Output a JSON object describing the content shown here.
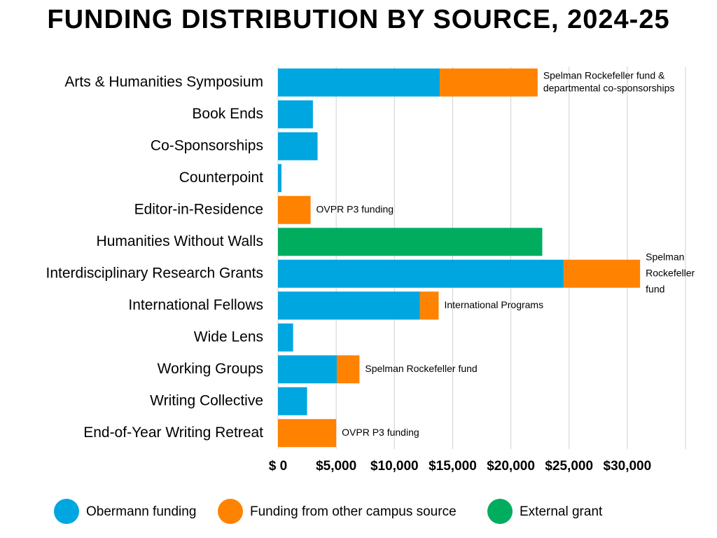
{
  "chart_data": {
    "type": "bar",
    "orientation": "horizontal",
    "stacked": true,
    "title": "FUNDING DISTRIBUTION BY SOURCE, 2024-25",
    "categories": [
      "Arts & Humanities Symposium",
      "Book Ends",
      "Co-Sponsorships",
      "Counterpoint",
      "Editor-in-Residence",
      "Humanities Without Walls",
      "Interdisciplinary Research Grants",
      "International Fellows",
      "Wide Lens",
      "Working Groups",
      "Writing Collective",
      "End-of-Year Writing Retreat"
    ],
    "series": [
      {
        "name": "Obermann funding",
        "color": "#00a6e0",
        "values": [
          13900,
          3000,
          3400,
          300,
          null,
          null,
          24550,
          12200,
          1300,
          5050,
          2500,
          null
        ]
      },
      {
        "name": "Funding from other campus source",
        "color": "#ff8200",
        "values": [
          8400,
          null,
          null,
          null,
          2800,
          null,
          6550,
          1600,
          null,
          1950,
          null,
          5000
        ]
      },
      {
        "name": "External grant",
        "color": "#00ad5f",
        "values": [
          null,
          null,
          null,
          null,
          null,
          22700,
          null,
          null,
          null,
          null,
          null,
          null
        ]
      }
    ],
    "xlim": [
      0,
      35000
    ],
    "xticks": [
      {
        "value": 0,
        "label": "$ 0"
      },
      {
        "value": 5000,
        "label": "$5,000"
      },
      {
        "value": 10000,
        "label": "$10,000"
      },
      {
        "value": 15000,
        "label": "$15,000"
      },
      {
        "value": 20000,
        "label": "$20,000"
      },
      {
        "value": 25000,
        "label": "$25,000"
      },
      {
        "value": 30000,
        "label": "$30,000"
      }
    ],
    "grid": true,
    "legend": "bottom",
    "annotations": [
      {
        "category": "Arts & Humanities Symposium",
        "lines": [
          "Spelman Rockefeller fund &",
          "departmental co-sponsorships"
        ]
      },
      {
        "category": "Editor-in-Residence",
        "lines": [
          "OVPR P3 funding"
        ]
      },
      {
        "category": "Interdisciplinary Research Grants",
        "lines": [
          "Spelman",
          "Rockefeller",
          "fund"
        ]
      },
      {
        "category": "International Fellows",
        "lines": [
          "International Programs"
        ]
      },
      {
        "category": "Working Groups",
        "lines": [
          "Spelman Rockefeller fund"
        ]
      },
      {
        "category": "End-of-Year Writing Retreat",
        "lines": [
          "OVPR P3 funding"
        ]
      }
    ]
  }
}
